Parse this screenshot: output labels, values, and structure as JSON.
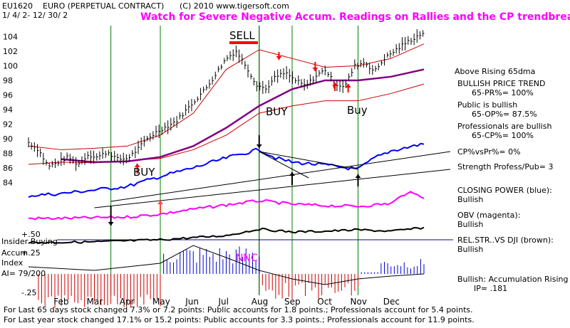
{
  "header": {
    "symbol": "EU1620",
    "name": "EURO   (PERPETUAL CONTRACT)",
    "copyright": "(C) 2010  www.tigersoft.com",
    "date_range": "1/ 4/ 2- 12/ 30/ 2",
    "headline": "Watch for Severe Negative Accum. Readings on Rallies and the CP trendbreaks."
  },
  "signals": {
    "sell": "SELL",
    "buy_left": "BUY",
    "buy_mid": "BUY",
    "buy_right": "Buy",
    "nnc": "NNC"
  },
  "panel_labels": {
    "insider": "Insider Buying",
    "accum": "Accum",
    "index": "Index",
    "ai": "AI= 79/200",
    "plus50": "+.50",
    "plus25": "+.25",
    "minus25": "-.25"
  },
  "right_notes": {
    "n1": "Above Rising 65dma",
    "n2": "BULLISH PRICE TREND",
    "n3": "65-PR%= 100%",
    "n4": "Public is bullish",
    "n5": "65-OP%= 87.5%",
    "n6": "Professionals are bullish",
    "n7": "65-CP%= 100%",
    "n8": "CP%vsPr%=  0%",
    "n9": "Strength Profess/Pub= 3",
    "n10": "CLOSING POWER (blue):",
    "n11": "Bullish",
    "n12": "OBV (magenta):",
    "n13": "Bullish",
    "n14": "REL.STR..VS DJI (brown):",
    "n15": "Bullish",
    "n16": "Bullish: Accumulation Rising",
    "n17": "IP=  .181"
  },
  "footer": {
    "line1": "For Last 65 days stock changed  7.3% or  7.2 points:  Public accounts for  1.8 points.;  Professionals account for  5.4 points.",
    "line2": "For Last year stock changed  17.1% or  15.2 points:  Public accounts for  3.3 points.;  Professionals account for  11.9 points."
  },
  "chart_data": {
    "type": "line",
    "x_unit": "month index (0 = early Jan 2002)",
    "months": [
      "Feb",
      "Mar",
      "Apr",
      "May",
      "Jun",
      "Jul",
      "Aug",
      "Sep",
      "Oct",
      "Nov",
      "Dec"
    ],
    "y_ticks": [
      84,
      86,
      88,
      90,
      92,
      94,
      96,
      98,
      100,
      102,
      104
    ],
    "ylim": [
      82.5,
      105.5
    ],
    "colors": {
      "price": "#000000",
      "upper_band": "#cc0000",
      "lower_band": "#cc0000",
      "ma65": "#800080",
      "closing_power": "#0000ff",
      "obv": "#ff00ff",
      "rel_strength": "#000000",
      "accum_positive": "#0000cc",
      "accum_negative": "#cc0000",
      "signal_lines": "#008000",
      "headline": "#ff00ff"
    },
    "price_series": {
      "x": [
        0,
        0.3,
        0.6,
        0.9,
        1.2,
        1.5,
        1.8,
        2.1,
        2.4,
        2.7,
        3.0,
        3.3,
        3.6,
        3.9,
        4.2,
        4.5,
        4.8,
        5.1,
        5.4,
        5.7,
        6.0,
        6.3,
        6.6,
        6.9,
        7.2,
        7.5,
        7.8,
        8.1,
        8.4,
        8.7,
        9.0,
        9.3,
        9.6,
        9.9,
        10.2,
        10.5,
        10.8,
        11.1,
        11.4,
        11.7,
        12.0
      ],
      "y": [
        89.5,
        88.5,
        86.2,
        86.8,
        87.5,
        86.5,
        87.8,
        87.5,
        88.2,
        87.2,
        87.3,
        88.5,
        90.0,
        91.0,
        91.7,
        92.5,
        94.0,
        95.5,
        97.0,
        99.0,
        101.0,
        102.0,
        100.0,
        97.5,
        96.8,
        98.5,
        99.0,
        98.0,
        97.2,
        98.5,
        99.5,
        97.5,
        97.2,
        100.0,
        100.5,
        99.2,
        101.0,
        102.0,
        103.0,
        103.8,
        104.6
      ]
    },
    "ma65": {
      "x": [
        1,
        2,
        3,
        4,
        5,
        6,
        7,
        8,
        9,
        10,
        11,
        12
      ],
      "y": [
        87.2,
        86.8,
        86.9,
        87.5,
        89.0,
        91.5,
        94.5,
        96.8,
        98.0,
        98.0,
        98.5,
        99.5
      ]
    },
    "upper_band": {
      "x": [
        0,
        1,
        2,
        3,
        4,
        5,
        6,
        7,
        8,
        9,
        10,
        11,
        12
      ],
      "y": [
        89.0,
        88.5,
        88.7,
        89.0,
        90.5,
        93.5,
        99.5,
        102.2,
        101.0,
        99.8,
        100.0,
        101.0,
        103.0
      ]
    },
    "lower_band": {
      "x": [
        0,
        1,
        2,
        3,
        4,
        5,
        6,
        7,
        8,
        9,
        10,
        11,
        12
      ],
      "y": [
        86.5,
        86.8,
        86.7,
        87.0,
        87.3,
        88.5,
        90.5,
        93.5,
        94.5,
        95.2,
        95.2,
        96.2,
        97.5
      ]
    },
    "signal_months": [
      2.5,
      4.0,
      7.0,
      8.0,
      10.0
    ]
  }
}
